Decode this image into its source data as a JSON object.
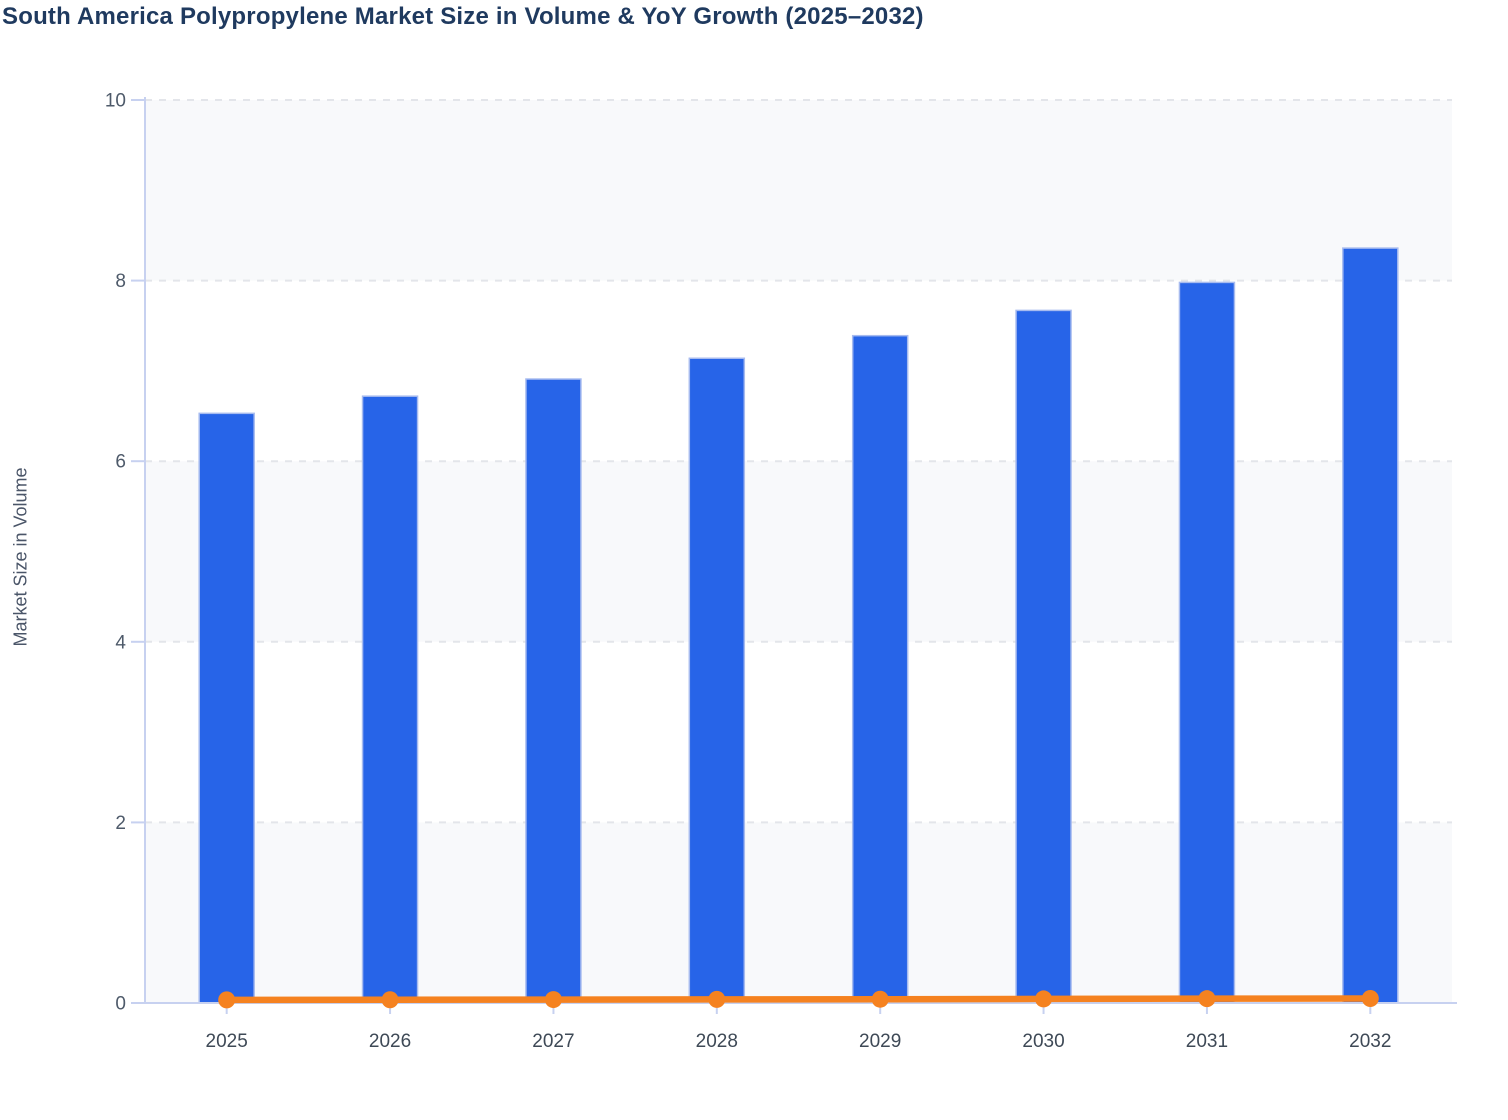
{
  "chart_data": {
    "type": "bar",
    "title": "South America Polypropylene Market Size in Volume & YoY Growth (2025–2032)",
    "xlabel": "",
    "ylabel": "Market Size in Volume",
    "categories": [
      "2025",
      "2026",
      "2027",
      "2028",
      "2029",
      "2030",
      "2031",
      "2032"
    ],
    "series": [
      {
        "name": "Market Size in Volume",
        "type": "bar",
        "values": [
          6.53,
          6.72,
          6.91,
          7.14,
          7.39,
          7.67,
          7.98,
          8.36
        ],
        "color": "#2764e8",
        "border_color": "#a7bbef"
      },
      {
        "name": "YoY Growth",
        "type": "line",
        "values": [
          0.035,
          0.036,
          0.038,
          0.04,
          0.042,
          0.045,
          0.048,
          0.05
        ],
        "color": "#f58220"
      }
    ],
    "ylim": [
      0,
      10
    ],
    "yticks": [
      0,
      2,
      4,
      6,
      8,
      10
    ],
    "grid": "dashed-horizontal",
    "legend": "none",
    "styles": {
      "band_color": "#f8f9fb",
      "grid_color": "#e3e5ea",
      "axis_color": "#c7d1f0",
      "y_tick_label_color": "#4e5a6a",
      "x_tick_label_color": "#3e4956",
      "title_color": "#1f3a5f",
      "ylabel_color": "#4a5568",
      "background": "#ffffff"
    }
  }
}
